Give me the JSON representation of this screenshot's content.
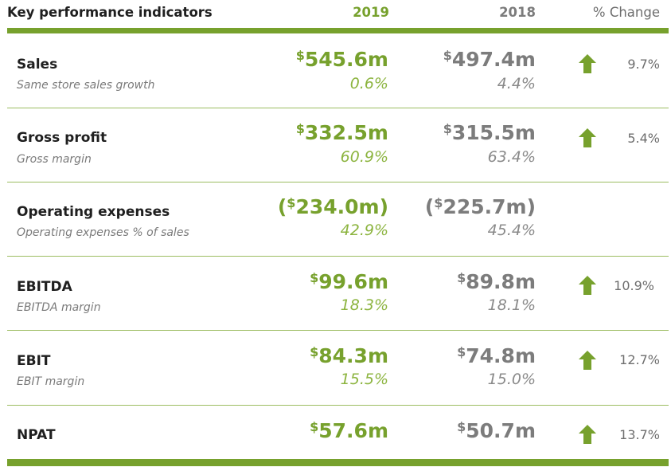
{
  "header": {
    "title": "Key performance indicators",
    "col_2019": "2019",
    "col_2018": "2018",
    "col_change": "% Change"
  },
  "colors": {
    "accent_green": "#77a12d",
    "value_grey": "#7c7c7c"
  },
  "rows": [
    {
      "label": "Sales",
      "sublabel": "Same store sales growth",
      "currency": "$",
      "v2019": "545.6m",
      "v2018": "497.4m",
      "p2019": "0.6%",
      "p2018": "4.4%",
      "change": "9.7%",
      "icon": "arrow-up-icon"
    },
    {
      "label": "Gross profit",
      "sublabel": "Gross margin",
      "currency": "$",
      "v2019": "332.5m",
      "v2018": "315.5m",
      "p2019": "60.9%",
      "p2018": "63.4%",
      "change": "5.4%",
      "icon": "arrow-up-icon"
    },
    {
      "label": "Operating expenses",
      "sublabel": "Operating expenses % of sales",
      "open": "(",
      "currency": "$",
      "v2019": "234.0m)",
      "v2018": "225.7m)",
      "p2019": "42.9%",
      "p2018": "45.4%"
    },
    {
      "label": "EBITDA",
      "sublabel": "EBITDA margin",
      "currency": "$",
      "v2019": "99.6m",
      "v2018": "89.8m",
      "p2019": "18.3%",
      "p2018": "18.1%",
      "change": "10.9%",
      "icon": "arrow-up-icon"
    },
    {
      "label": "EBIT",
      "sublabel": "EBIT margin",
      "currency": "$",
      "v2019": "84.3m",
      "v2018": "74.8m",
      "p2019": "15.5%",
      "p2018": "15.0%",
      "change": "12.7%",
      "icon": "arrow-up-icon"
    },
    {
      "label": "NPAT",
      "currency": "$",
      "v2019": "57.6m",
      "v2018": "50.7m",
      "change": "13.7%",
      "icon": "arrow-up-icon"
    }
  ]
}
